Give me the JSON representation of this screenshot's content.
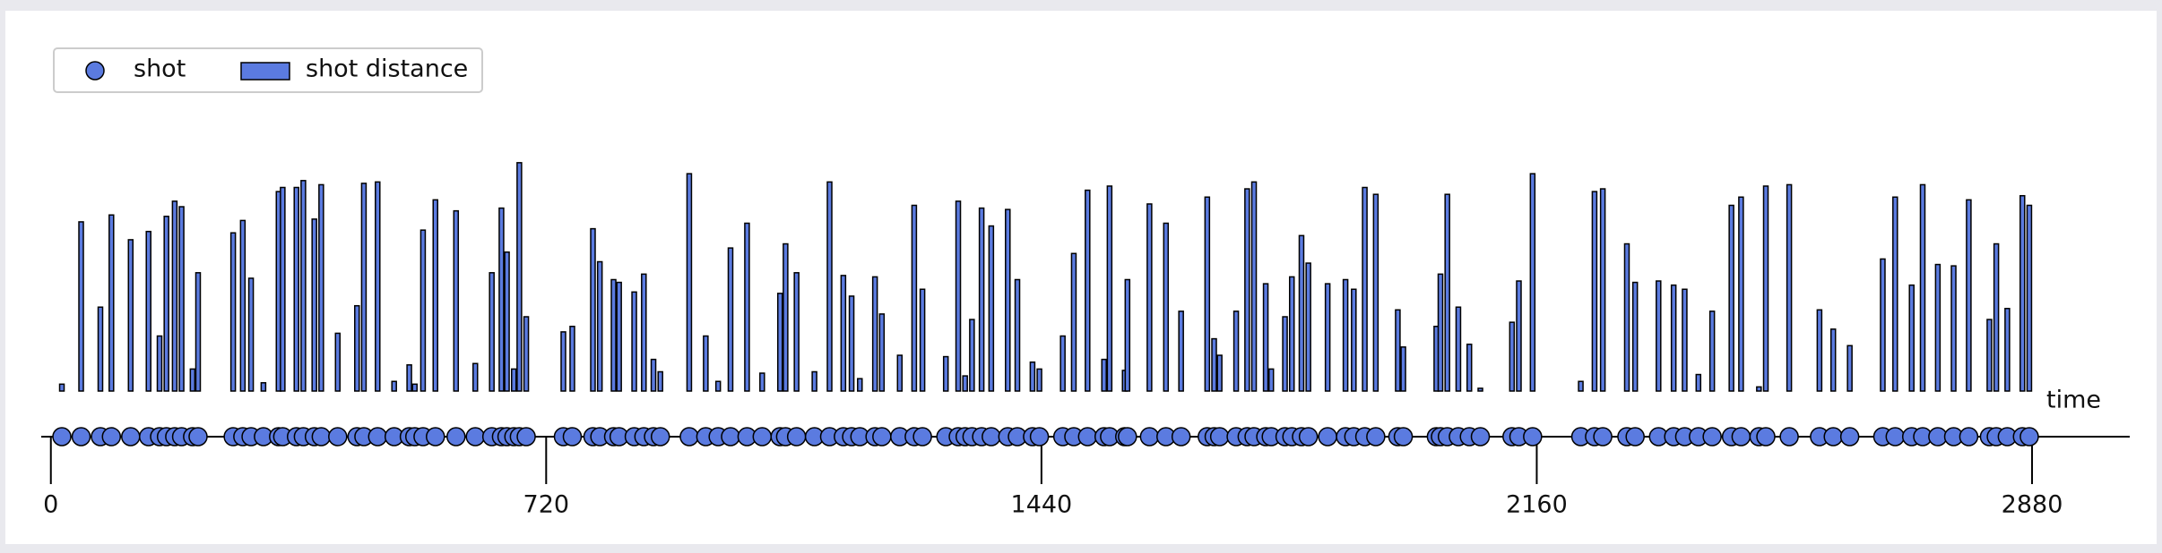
{
  "chart_data": {
    "type": "shot-timeline",
    "x_label": "time",
    "xlim": [
      -14,
      3022
    ],
    "xticks": [
      0,
      720,
      1440,
      2160,
      2880
    ],
    "ylim": [
      0,
      35
    ],
    "x": [
      16,
      44,
      72,
      88,
      116,
      142,
      158,
      168,
      180,
      190,
      206,
      214,
      265,
      279,
      291,
      309,
      331,
      337,
      357,
      367,
      383,
      393,
      417,
      445,
      455,
      475,
      499,
      521,
      529,
      541,
      559,
      589,
      617,
      641,
      655,
      663,
      673,
      681,
      691,
      745,
      758,
      788,
      798,
      818,
      826,
      848,
      862,
      876,
      886,
      928,
      952,
      970,
      988,
      1012,
      1034,
      1060,
      1068,
      1084,
      1110,
      1132,
      1152,
      1164,
      1176,
      1198,
      1208,
      1234,
      1255,
      1267,
      1301,
      1319,
      1329,
      1339,
      1353,
      1367,
      1391,
      1405,
      1427,
      1437,
      1471,
      1487,
      1507,
      1531,
      1539,
      1561,
      1565,
      1597,
      1621,
      1643,
      1681,
      1691,
      1699,
      1723,
      1739,
      1749,
      1766,
      1774,
      1794,
      1804,
      1818,
      1828,
      1856,
      1882,
      1894,
      1910,
      1926,
      1958,
      1966,
      2014,
      2020,
      2030,
      2046,
      2062,
      2078,
      2124,
      2134,
      2154,
      2224,
      2244,
      2256,
      2291,
      2303,
      2337,
      2359,
      2375,
      2395,
      2415,
      2443,
      2457,
      2483,
      2493,
      2527,
      2571,
      2591,
      2615,
      2663,
      2681,
      2705,
      2721,
      2743,
      2766,
      2788,
      2818,
      2828,
      2844,
      2866,
      2876
    ],
    "series": [
      {
        "name": "shot",
        "color": "#5b7be0",
        "marker": "circle"
      },
      {
        "name": "shot distance",
        "color": "#5b7be0",
        "marker": "bar",
        "values": [
          1,
          24.6,
          12.2,
          25.6,
          22,
          23.2,
          8,
          25.4,
          27.6,
          26.8,
          3.2,
          17.2,
          23,
          24.8,
          16.4,
          1.2,
          29,
          29.6,
          29.6,
          30.6,
          25,
          30,
          8.4,
          12.4,
          30.2,
          30.4,
          1.4,
          3.8,
          1,
          23.4,
          27.8,
          26.2,
          4,
          17.2,
          26.6,
          20.2,
          3.2,
          33.2,
          10.8,
          8.6,
          9.4,
          23.6,
          18.8,
          16.2,
          15.8,
          14.4,
          17,
          4.6,
          2.8,
          31.6,
          8,
          1.4,
          20.8,
          24.4,
          2.6,
          14.2,
          21.4,
          17.2,
          2.8,
          30.4,
          16.8,
          13.8,
          1.8,
          16.6,
          11.2,
          5.2,
          27,
          14.8,
          5,
          27.6,
          2.2,
          10.4,
          26.6,
          24,
          26.4,
          16.2,
          4.2,
          3.2,
          8,
          20,
          29.2,
          4.6,
          29.8,
          3,
          16.2,
          27.2,
          24.4,
          11.6,
          28.2,
          7.6,
          5.2,
          11.6,
          29.4,
          30.4,
          15.6,
          3.2,
          10.8,
          16.6,
          22.6,
          18.6,
          15.6,
          16.2,
          14.8,
          29.6,
          28.6,
          11.8,
          6.4,
          9.4,
          17,
          28.6,
          12.2,
          6.8,
          0.4,
          10,
          16,
          31.6,
          1.4,
          29,
          29.4,
          21.4,
          15.8,
          16,
          15.4,
          14.8,
          2.4,
          11.6,
          27,
          28.2,
          0.6,
          29.8,
          30,
          11.8,
          9,
          6.6,
          19.2,
          28.2,
          15.4,
          30,
          18.4,
          18.2,
          27.8,
          10.4,
          21.4,
          12,
          28.4,
          27
        ]
      }
    ]
  }
}
